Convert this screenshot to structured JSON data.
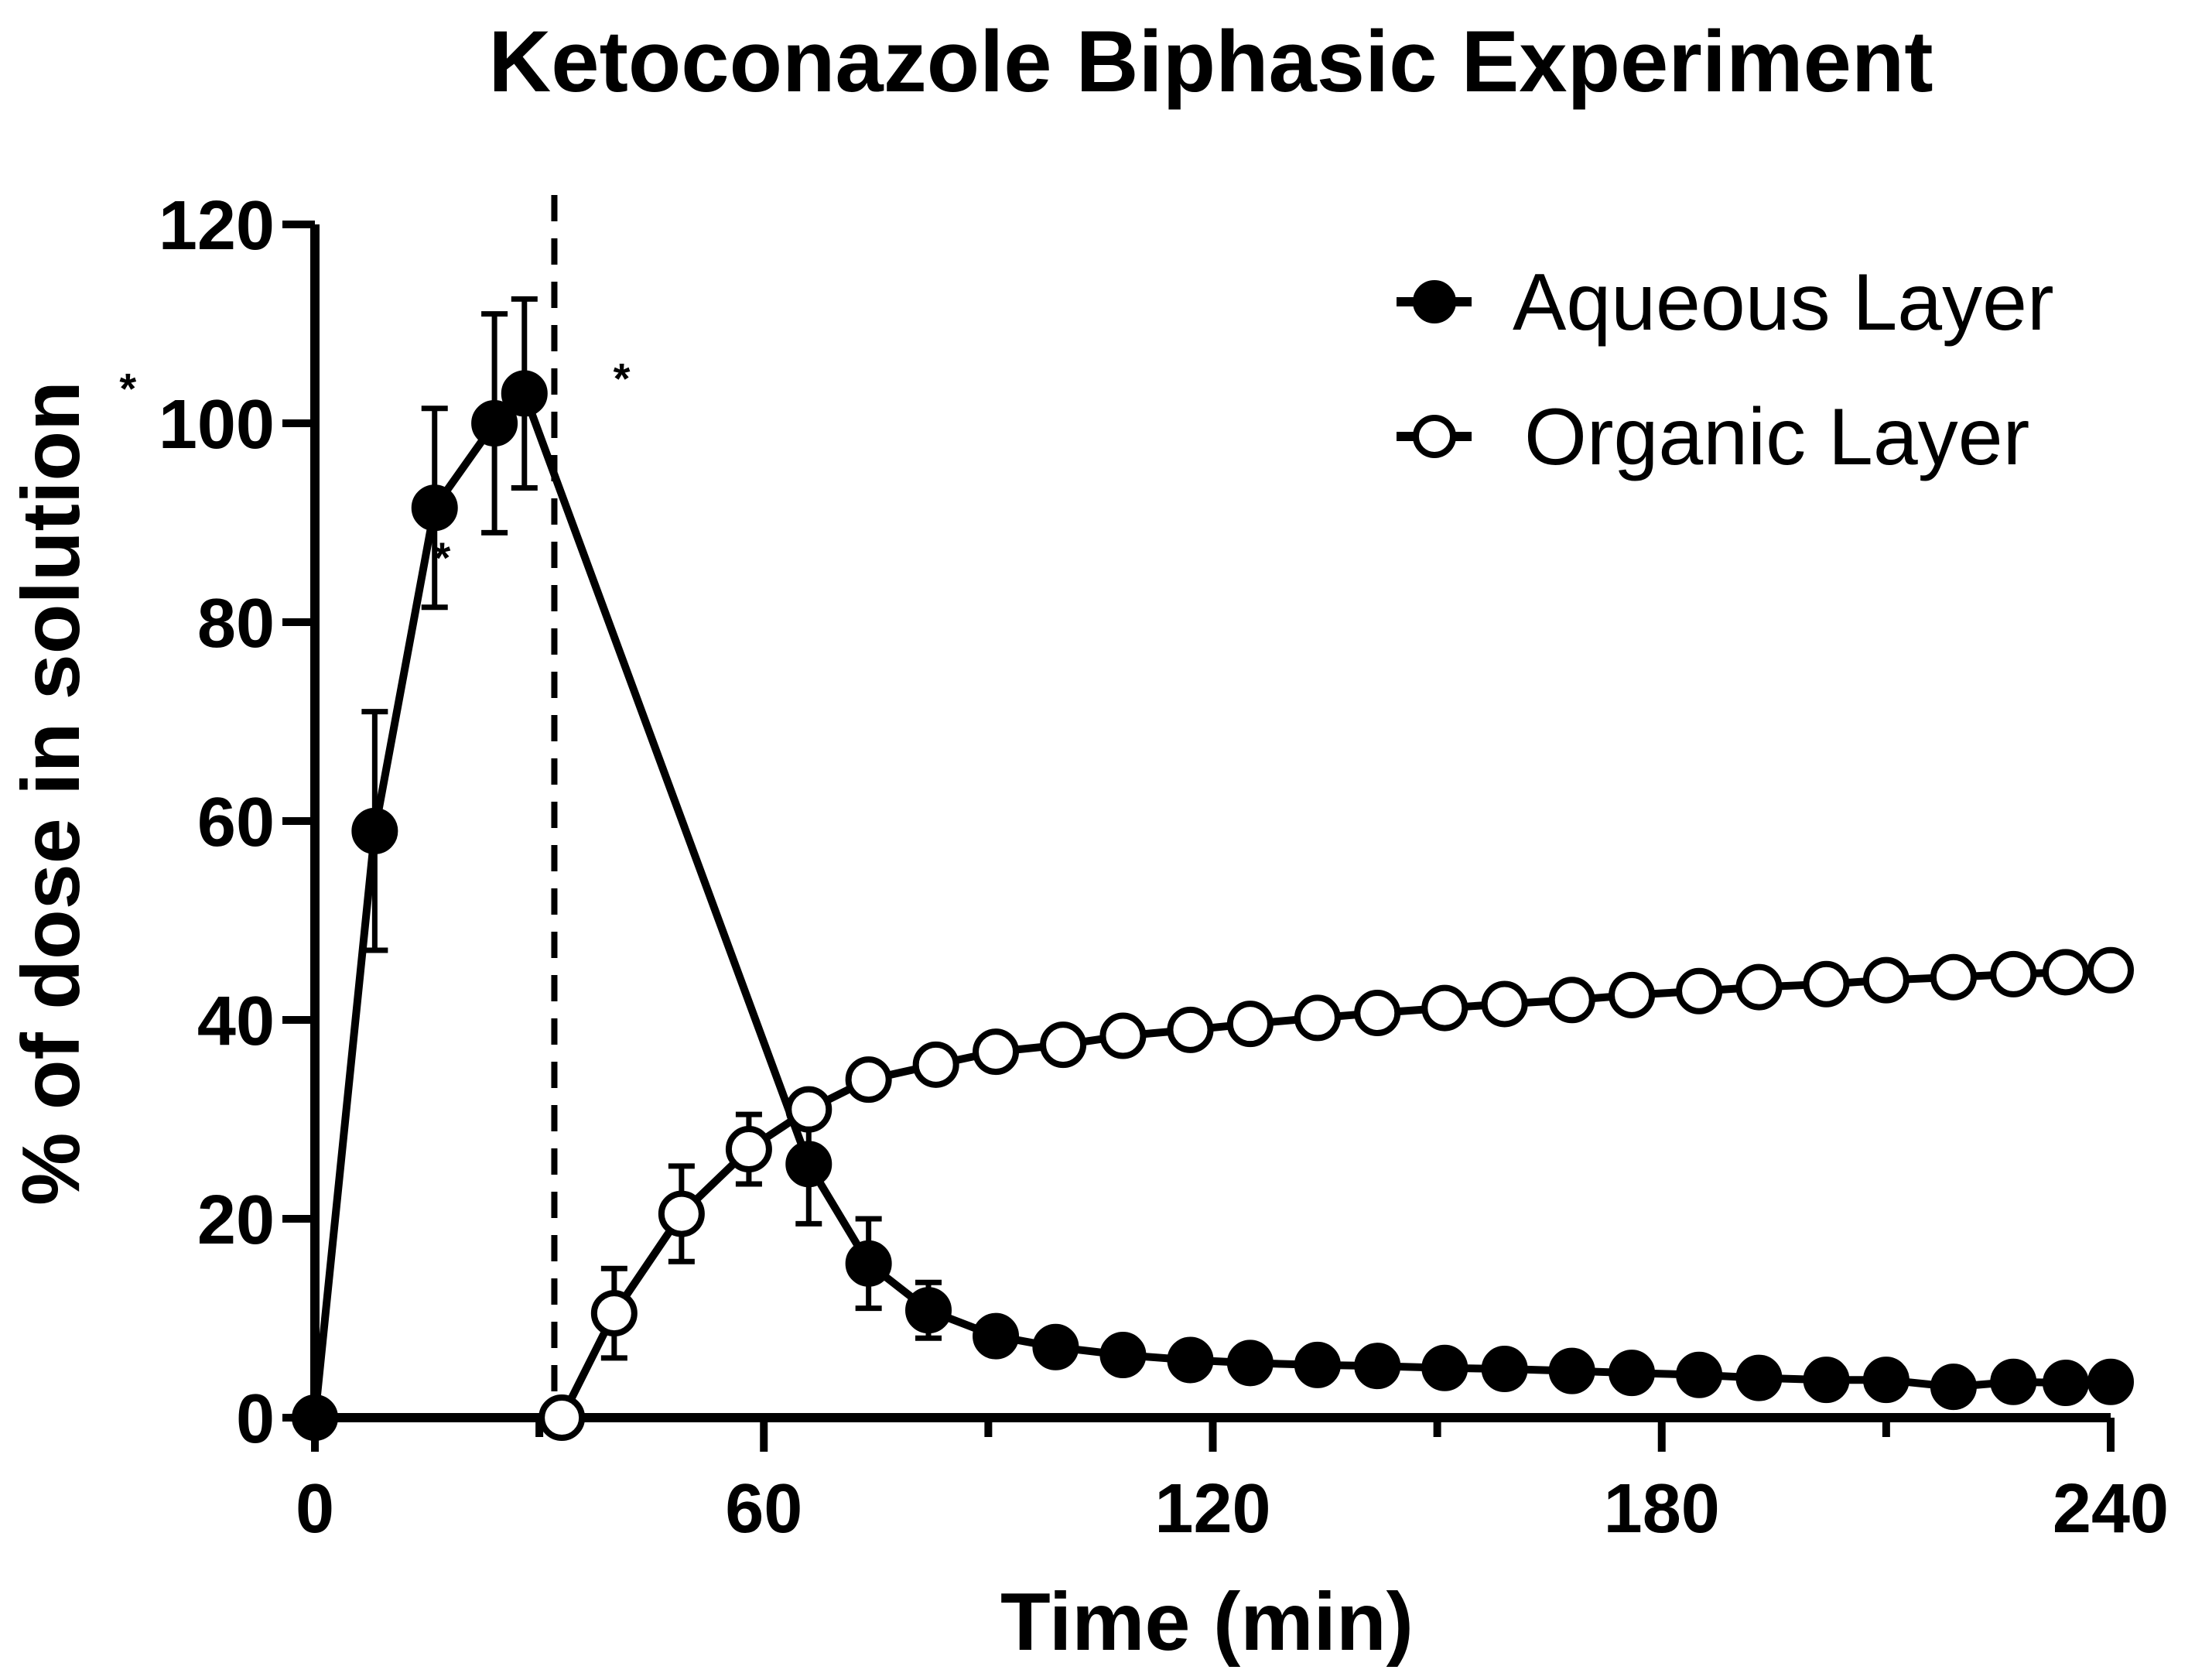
{
  "chart_data": {
    "type": "line",
    "title": "Ketoconazole Biphasic Experiment",
    "xlabel": "Time (min)",
    "ylabel": "% of dose in solution",
    "xlim": [
      0,
      240
    ],
    "ylim": [
      0,
      120
    ],
    "x_ticks": [
      0,
      60,
      120,
      180,
      240
    ],
    "x_minor_ticks": [
      30,
      90,
      150,
      210
    ],
    "y_ticks": [
      0,
      20,
      40,
      60,
      80,
      100,
      120
    ],
    "grid": false,
    "legend_position": "top-right",
    "vertical_reference_line": {
      "x": 32,
      "style": "dashed"
    },
    "annotations": [
      {
        "text": "*",
        "x": -25,
        "y": 102
      },
      {
        "text": "*",
        "x": 17,
        "y": 85
      },
      {
        "text": "*",
        "x": 41,
        "y": 103
      }
    ],
    "series": [
      {
        "name": "Aqueous Layer",
        "marker": "filled-circle",
        "points": [
          {
            "x": 0,
            "y": 0,
            "err": 0
          },
          {
            "x": 8,
            "y": 59,
            "err": 12
          },
          {
            "x": 16,
            "y": 91.5,
            "err": 10
          },
          {
            "x": 24,
            "y": 100,
            "err": 11
          },
          {
            "x": 28,
            "y": 103,
            "err": 9.5
          },
          {
            "x": 66,
            "y": 25.5,
            "err": 6
          },
          {
            "x": 74,
            "y": 15.5,
            "err": 4.5
          },
          {
            "x": 82,
            "y": 10.8,
            "err": 2.8
          },
          {
            "x": 91,
            "y": 8.2,
            "err": 0
          },
          {
            "x": 99,
            "y": 7.1,
            "err": 0
          },
          {
            "x": 108,
            "y": 6.3,
            "err": 0
          },
          {
            "x": 117,
            "y": 5.8,
            "err": 0
          },
          {
            "x": 125,
            "y": 5.5,
            "err": 0
          },
          {
            "x": 134,
            "y": 5.3,
            "err": 0
          },
          {
            "x": 142,
            "y": 5.2,
            "err": 0
          },
          {
            "x": 151,
            "y": 5.0,
            "err": 0
          },
          {
            "x": 159,
            "y": 4.9,
            "err": 0
          },
          {
            "x": 168,
            "y": 4.7,
            "err": 0
          },
          {
            "x": 176,
            "y": 4.5,
            "err": 0
          },
          {
            "x": 185,
            "y": 4.3,
            "err": 0
          },
          {
            "x": 193,
            "y": 4.0,
            "err": 0
          },
          {
            "x": 202,
            "y": 3.8,
            "err": 0
          },
          {
            "x": 210,
            "y": 3.8,
            "err": 0
          },
          {
            "x": 219,
            "y": 3.1,
            "err": 0
          },
          {
            "x": 227,
            "y": 3.6,
            "err": 0
          },
          {
            "x": 234,
            "y": 3.5,
            "err": 0
          },
          {
            "x": 240,
            "y": 3.6,
            "err": 0
          }
        ]
      },
      {
        "name": "Organic Layer",
        "marker": "open-circle",
        "points": [
          {
            "x": 33,
            "y": 0,
            "err": 0
          },
          {
            "x": 40,
            "y": 10.5,
            "err": 4.5
          },
          {
            "x": 49,
            "y": 20.5,
            "err": 4.8
          },
          {
            "x": 58,
            "y": 27,
            "err": 3.5
          },
          {
            "x": 66,
            "y": 31,
            "err": 0
          },
          {
            "x": 74,
            "y": 34,
            "err": 0
          },
          {
            "x": 83,
            "y": 35.5,
            "err": 0
          },
          {
            "x": 91,
            "y": 36.8,
            "err": 0
          },
          {
            "x": 100,
            "y": 37.5,
            "err": 0
          },
          {
            "x": 108,
            "y": 38.4,
            "err": 0
          },
          {
            "x": 117,
            "y": 39,
            "err": 0
          },
          {
            "x": 125,
            "y": 39.6,
            "err": 0
          },
          {
            "x": 134,
            "y": 40.2,
            "err": 0
          },
          {
            "x": 142,
            "y": 40.7,
            "err": 0
          },
          {
            "x": 151,
            "y": 41.2,
            "err": 0
          },
          {
            "x": 159,
            "y": 41.6,
            "err": 0
          },
          {
            "x": 168,
            "y": 42,
            "err": 0
          },
          {
            "x": 176,
            "y": 42.5,
            "err": 0
          },
          {
            "x": 185,
            "y": 42.9,
            "err": 0
          },
          {
            "x": 193,
            "y": 43.3,
            "err": 0
          },
          {
            "x": 202,
            "y": 43.6,
            "err": 0
          },
          {
            "x": 210,
            "y": 44,
            "err": 0
          },
          {
            "x": 219,
            "y": 44.3,
            "err": 0
          },
          {
            "x": 227,
            "y": 44.6,
            "err": 0
          },
          {
            "x": 234,
            "y": 44.8,
            "err": 0
          },
          {
            "x": 240,
            "y": 45,
            "err": 0
          }
        ]
      }
    ]
  }
}
